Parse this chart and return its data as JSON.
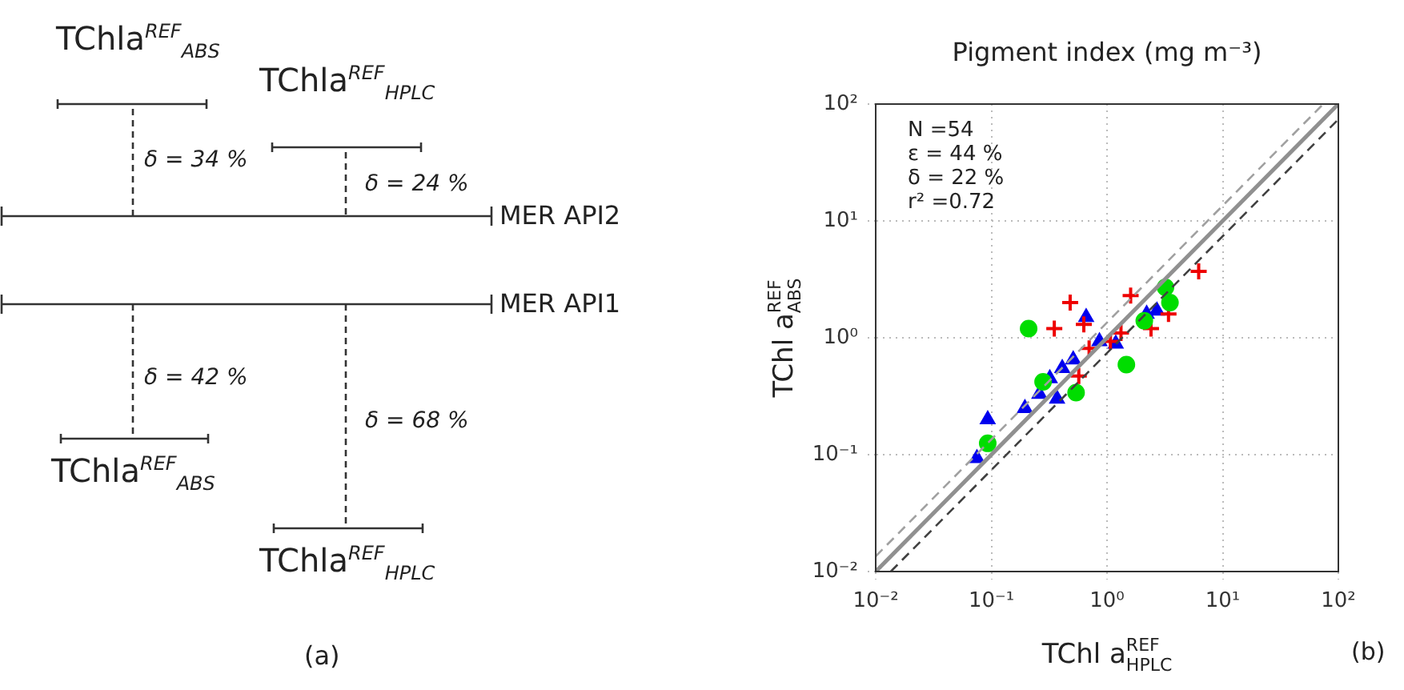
{
  "chart_data": [
    {
      "type": "other",
      "annotations": [
        "TChla$^{REF}$$_{ABS}$",
        "TChla$^{REF}$$_{HPLC}$",
        "δ = 34 %",
        "δ = 24 %",
        "MER API2",
        "MER API1",
        "δ = 42 %",
        "δ = 68 %",
        "TChla$^{REF}$$_{ABS}$",
        "TChla$^{REF}$$_{HPLC}$",
        "(a)"
      ]
    },
    {
      "type": "scatter",
      "title": "Pigment index (mg m⁻³)",
      "xlabel": "TChl a$^{REF}$$_{HPLC}$",
      "ylabel": "TChl a$^{REF}$$_{ABS}$",
      "log": "xy",
      "grid": true,
      "legend": false,
      "xlim": [
        0.01,
        100
      ],
      "ylim": [
        0.01,
        100
      ],
      "xticks": [
        {
          "value": 0.01,
          "label": "10⁻²"
        },
        {
          "value": 0.1,
          "label": "10⁻¹"
        },
        {
          "value": 1,
          "label": "10⁰"
        },
        {
          "value": 10,
          "label": "10¹"
        },
        {
          "value": 100,
          "label": "10²"
        }
      ],
      "yticks": [
        {
          "value": 0.01,
          "label": "10⁻²"
        },
        {
          "value": 0.1,
          "label": "10⁻¹"
        },
        {
          "value": 1,
          "label": "10⁰"
        },
        {
          "value": 10,
          "label": "10¹"
        },
        {
          "value": 100,
          "label": "10²"
        }
      ],
      "annotations": [
        "N =54",
        "ε = 44 %",
        "δ = 22 %",
        "r² =0.72",
        "(b)"
      ],
      "series": [
        {
          "type": "line",
          "color": "#a0a0a0",
          "line_style": "dashed",
          "marker": "none",
          "x": [
            0.01,
            74
          ],
          "values": [
            0.0135,
            100
          ]
        },
        {
          "type": "line",
          "color": "#404040",
          "line_style": "dashed",
          "marker": "none",
          "x": [
            0.0135,
            100
          ],
          "values": [
            0.01,
            74
          ]
        },
        {
          "type": "line",
          "color": "#909090",
          "line_style": "solid",
          "marker": "none",
          "x": [
            0.01,
            100
          ],
          "values": [
            0.01,
            100
          ]
        },
        {
          "type": "scatter",
          "color": "#00dd00",
          "marker": "circle",
          "x": [
            0.21,
            0.093,
            1.47,
            0.54,
            0.28,
            3.2,
            3.5,
            2.1
          ],
          "values": [
            1.2,
            0.125,
            0.59,
            0.34,
            0.42,
            2.7,
            2.0,
            1.4
          ]
        },
        {
          "type": "scatter",
          "color": "#ee0000",
          "marker": "cross",
          "x": [
            6.2,
            0.48,
            0.35,
            0.63,
            1.6,
            2.4,
            3.4,
            0.7,
            1.32,
            0.57,
            1.07
          ],
          "values": [
            3.7,
            2.0,
            1.2,
            1.3,
            2.3,
            1.2,
            1.6,
            0.81,
            1.1,
            0.47,
            0.93
          ]
        },
        {
          "type": "scatter",
          "color": "#0000ee",
          "marker": "triangle",
          "x": [
            0.093,
            0.075,
            0.195,
            0.26,
            0.37,
            0.32,
            0.41,
            0.51,
            0.66,
            1.19,
            2.2,
            2.7,
            0.86
          ],
          "values": [
            0.2,
            0.093,
            0.25,
            0.33,
            0.3,
            0.45,
            0.55,
            0.65,
            1.5,
            0.89,
            1.6,
            1.7,
            0.93
          ]
        }
      ]
    }
  ]
}
